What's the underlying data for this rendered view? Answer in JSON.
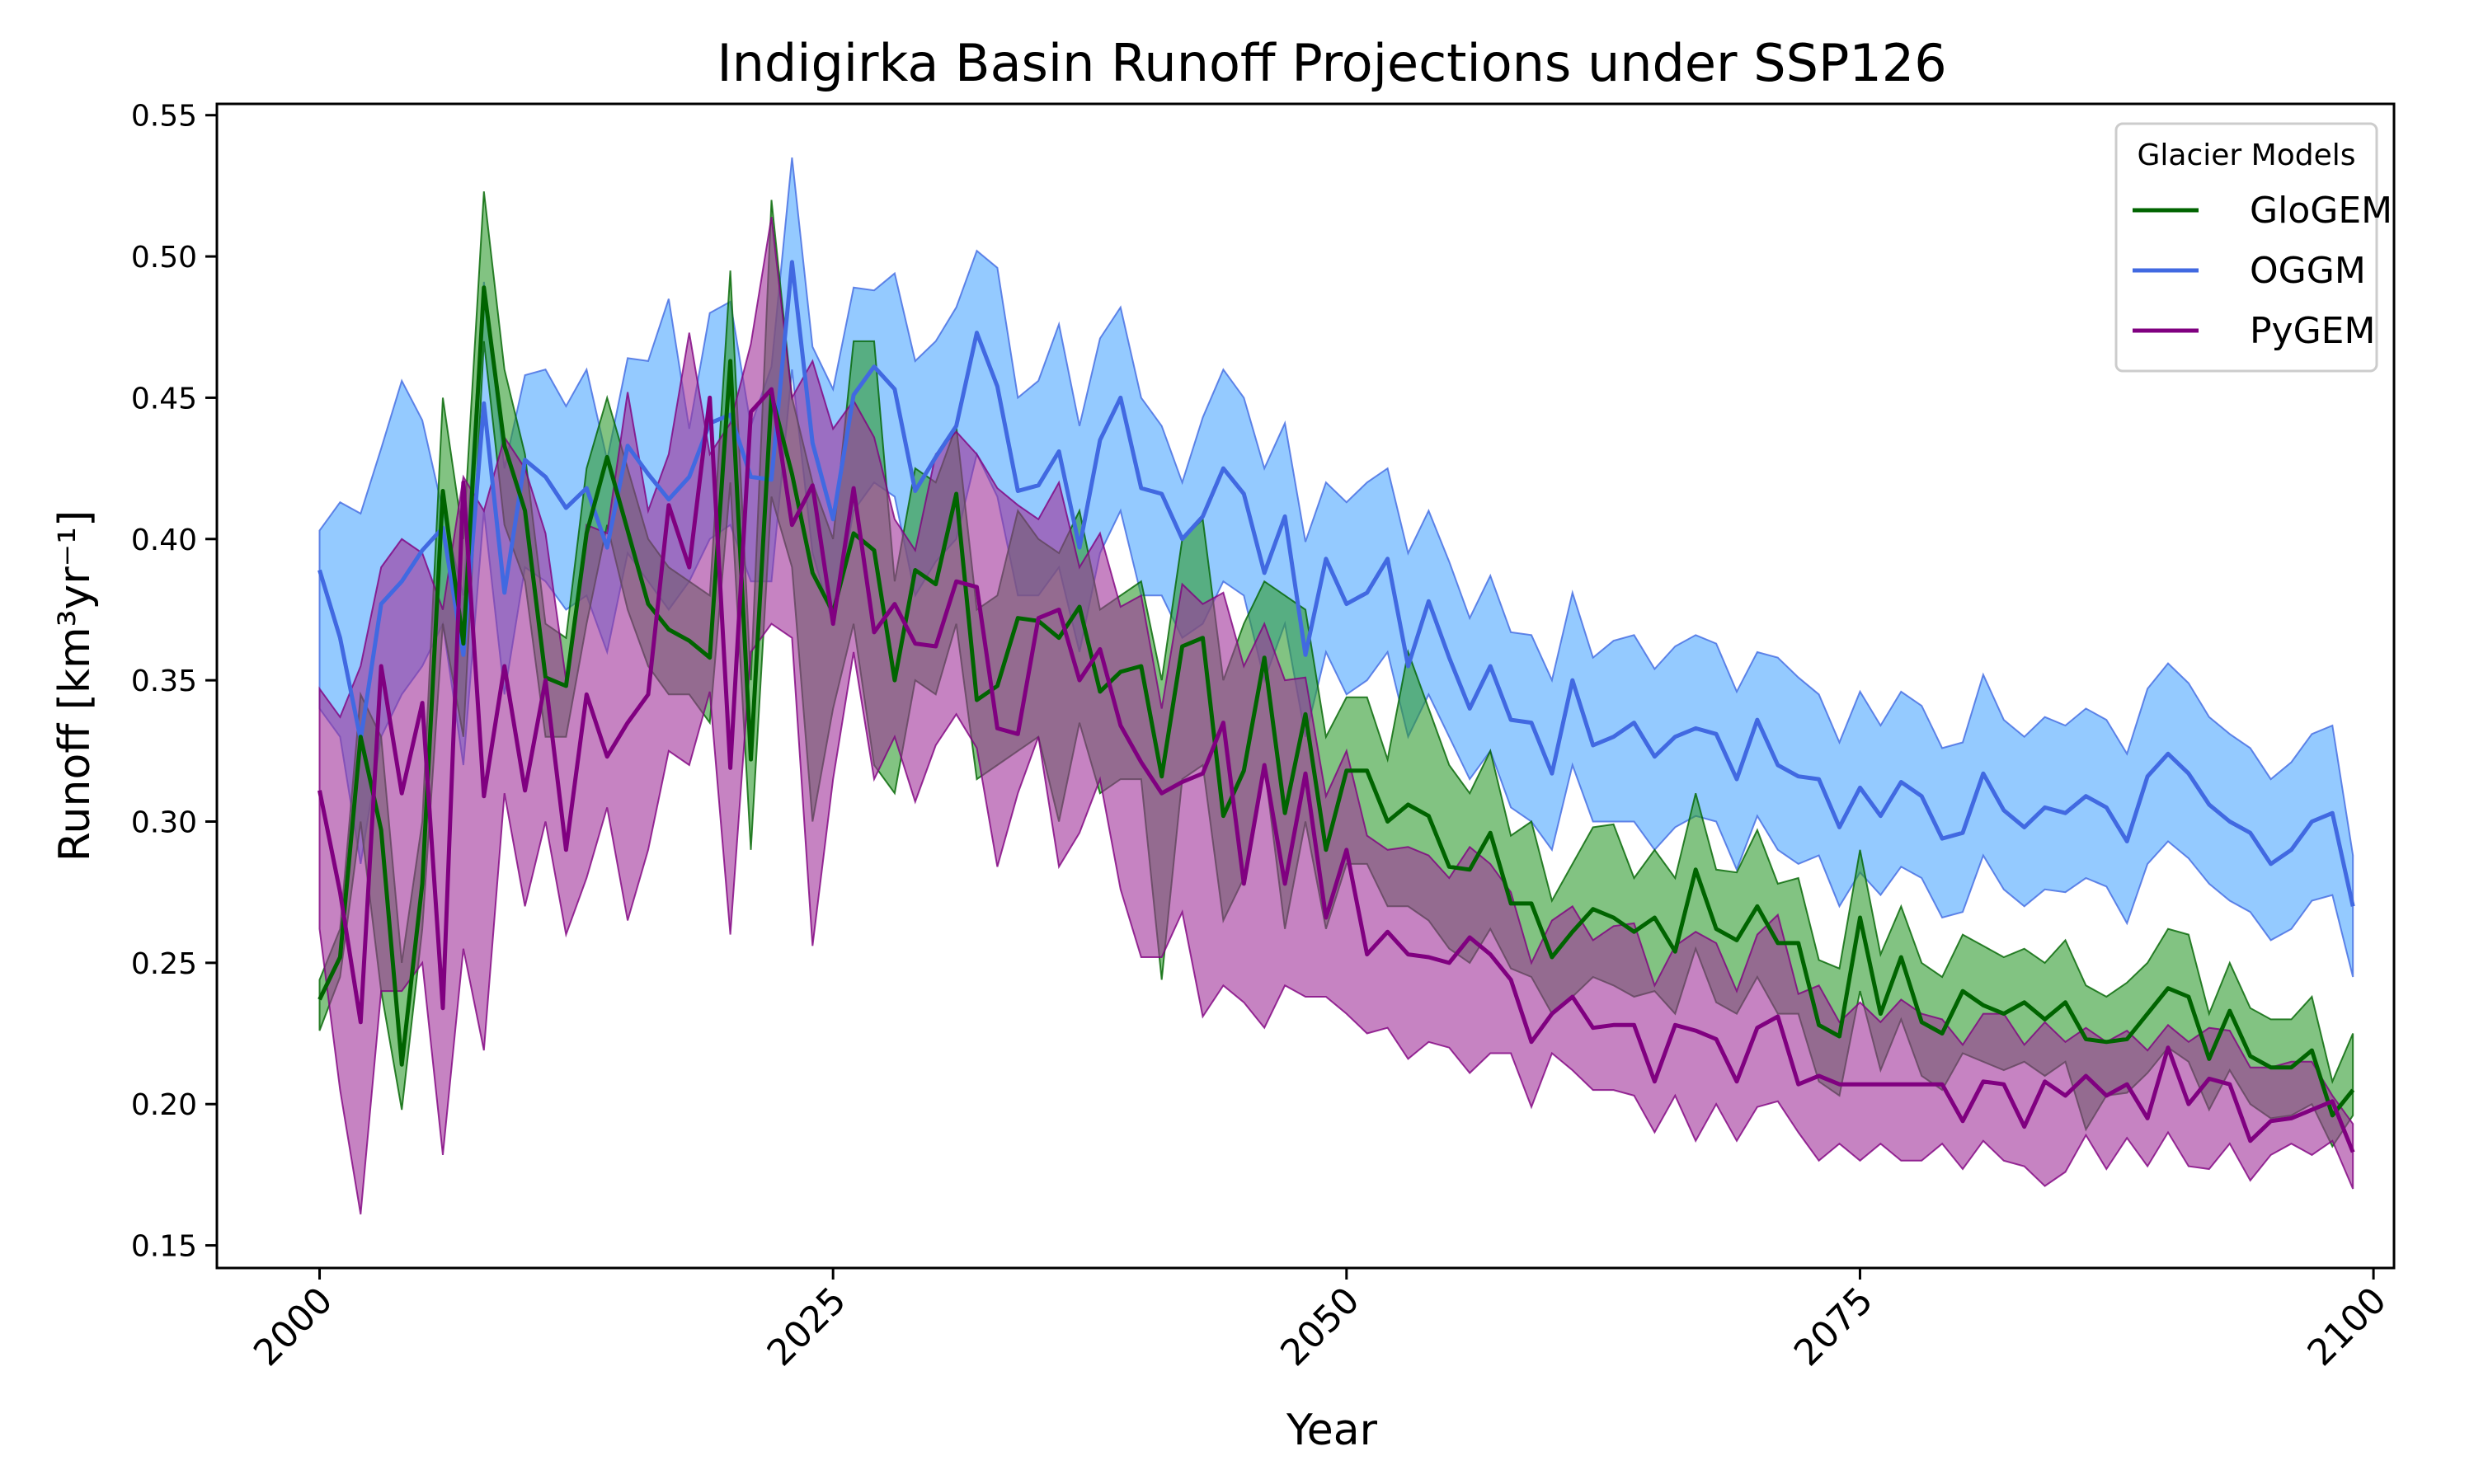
{
  "colors": {
    "GloGEM": "#006400",
    "OGGM": "#4169E1",
    "PyGEM": "#800080",
    "GloGEM_fill": "#2E9B2E",
    "OGGM_fill": "#4DA6FF",
    "PyGEM_fill": "#A0309A"
  },
  "chart_data": {
    "type": "line",
    "title": "Indigirka Basin Runoff Projections under SSP126",
    "xlabel": "Year",
    "ylabel": "Runoff [km³yr⁻¹]",
    "xlim": [
      1995,
      2101
    ],
    "ylim": [
      0.142,
      0.554
    ],
    "xticks": [
      2000,
      2025,
      2050,
      2075,
      2100
    ],
    "yticks": [
      "0.15",
      "0.20",
      "0.25",
      "0.30",
      "0.35",
      "0.40",
      "0.45",
      "0.50",
      "0.55"
    ],
    "grid": false,
    "legend": {
      "title": "Glacier Models",
      "placement": "upper right"
    },
    "x_start": 2000,
    "series": [
      {
        "name": "GloGEM",
        "mean": [
          0.237,
          0.252,
          0.33,
          0.297,
          0.214,
          0.278,
          0.417,
          0.363,
          0.489,
          0.433,
          0.41,
          0.351,
          0.348,
          0.402,
          0.429,
          0.403,
          0.377,
          0.368,
          0.364,
          0.358,
          0.463,
          0.322,
          0.451,
          0.423,
          0.388,
          0.374,
          0.402,
          0.396,
          0.35,
          0.389,
          0.384,
          0.416,
          0.343,
          0.348,
          0.372,
          0.371,
          0.365,
          0.376,
          0.346,
          0.353,
          0.355,
          0.316,
          0.362,
          0.365,
          0.302,
          0.318,
          0.358,
          0.303,
          0.338,
          0.29,
          0.318,
          0.318,
          0.3,
          0.306,
          0.302,
          0.284,
          0.283,
          0.296,
          0.271,
          0.271,
          0.252,
          0.261,
          0.269,
          0.266,
          0.261,
          0.266,
          0.254,
          0.283,
          0.262,
          0.258,
          0.27,
          0.257,
          0.257,
          0.228,
          0.224,
          0.266,
          0.232,
          0.252,
          0.229,
          0.225,
          0.24,
          0.235,
          0.232,
          0.236,
          0.23,
          0.236,
          0.223,
          0.222,
          0.223,
          0.232,
          0.241,
          0.238,
          0.216,
          0.233,
          0.217,
          0.213,
          0.213,
          0.219,
          0.196,
          0.205
        ],
        "lower": [
          0.226,
          0.245,
          0.3,
          0.24,
          0.198,
          0.262,
          0.37,
          0.33,
          0.47,
          0.405,
          0.385,
          0.33,
          0.33,
          0.37,
          0.405,
          0.375,
          0.355,
          0.345,
          0.345,
          0.335,
          0.42,
          0.29,
          0.415,
          0.39,
          0.3,
          0.34,
          0.37,
          0.32,
          0.31,
          0.35,
          0.345,
          0.37,
          0.315,
          0.32,
          0.325,
          0.33,
          0.3,
          0.335,
          0.31,
          0.315,
          0.315,
          0.244,
          0.315,
          0.32,
          0.265,
          0.28,
          0.32,
          0.262,
          0.3,
          0.262,
          0.285,
          0.285,
          0.27,
          0.27,
          0.265,
          0.255,
          0.25,
          0.262,
          0.248,
          0.245,
          0.232,
          0.238,
          0.245,
          0.242,
          0.238,
          0.24,
          0.232,
          0.255,
          0.236,
          0.232,
          0.245,
          0.232,
          0.232,
          0.208,
          0.203,
          0.24,
          0.212,
          0.23,
          0.21,
          0.205,
          0.218,
          0.215,
          0.212,
          0.215,
          0.21,
          0.215,
          0.191,
          0.203,
          0.204,
          0.211,
          0.22,
          0.215,
          0.198,
          0.212,
          0.2,
          0.195,
          0.196,
          0.2,
          0.185,
          0.196
        ],
        "upper": [
          0.244,
          0.262,
          0.345,
          0.33,
          0.25,
          0.3,
          0.45,
          0.4,
          0.523,
          0.46,
          0.43,
          0.37,
          0.365,
          0.425,
          0.45,
          0.425,
          0.4,
          0.39,
          0.385,
          0.38,
          0.495,
          0.35,
          0.52,
          0.45,
          0.42,
          0.4,
          0.47,
          0.47,
          0.385,
          0.425,
          0.42,
          0.44,
          0.375,
          0.38,
          0.41,
          0.4,
          0.395,
          0.41,
          0.375,
          0.38,
          0.385,
          0.35,
          0.4,
          0.407,
          0.35,
          0.37,
          0.385,
          0.38,
          0.375,
          0.33,
          0.344,
          0.344,
          0.322,
          0.36,
          0.34,
          0.32,
          0.31,
          0.325,
          0.295,
          0.3,
          0.272,
          0.285,
          0.298,
          0.299,
          0.28,
          0.29,
          0.28,
          0.31,
          0.283,
          0.282,
          0.297,
          0.278,
          0.28,
          0.251,
          0.248,
          0.29,
          0.253,
          0.27,
          0.25,
          0.245,
          0.26,
          0.256,
          0.252,
          0.255,
          0.25,
          0.258,
          0.242,
          0.238,
          0.243,
          0.25,
          0.262,
          0.26,
          0.232,
          0.25,
          0.234,
          0.23,
          0.23,
          0.238,
          0.208,
          0.225
        ]
      },
      {
        "name": "OGGM",
        "mean": [
          0.389,
          0.365,
          0.329,
          0.377,
          0.385,
          0.396,
          0.404,
          0.359,
          0.448,
          0.381,
          0.428,
          0.422,
          0.411,
          0.418,
          0.397,
          0.433,
          0.423,
          0.414,
          0.422,
          0.441,
          0.444,
          0.422,
          0.421,
          0.498,
          0.434,
          0.407,
          0.451,
          0.461,
          0.453,
          0.417,
          0.429,
          0.44,
          0.473,
          0.454,
          0.417,
          0.419,
          0.431,
          0.397,
          0.435,
          0.45,
          0.418,
          0.416,
          0.4,
          0.408,
          0.425,
          0.416,
          0.388,
          0.408,
          0.359,
          0.393,
          0.377,
          0.381,
          0.393,
          0.355,
          0.378,
          0.358,
          0.34,
          0.355,
          0.336,
          0.335,
          0.317,
          0.35,
          0.327,
          0.33,
          0.335,
          0.323,
          0.33,
          0.333,
          0.331,
          0.315,
          0.336,
          0.32,
          0.316,
          0.315,
          0.298,
          0.312,
          0.302,
          0.314,
          0.309,
          0.294,
          0.296,
          0.317,
          0.304,
          0.298,
          0.305,
          0.303,
          0.309,
          0.305,
          0.293,
          0.316,
          0.324,
          0.317,
          0.306,
          0.3,
          0.296,
          0.285,
          0.29,
          0.3,
          0.303,
          0.27
        ],
        "lower": [
          0.34,
          0.33,
          0.285,
          0.33,
          0.345,
          0.355,
          0.37,
          0.32,
          0.41,
          0.345,
          0.39,
          0.385,
          0.375,
          0.38,
          0.36,
          0.395,
          0.385,
          0.375,
          0.385,
          0.4,
          0.405,
          0.385,
          0.385,
          0.46,
          0.395,
          0.37,
          0.41,
          0.42,
          0.415,
          0.38,
          0.392,
          0.4,
          0.43,
          0.415,
          0.38,
          0.38,
          0.39,
          0.36,
          0.395,
          0.41,
          0.38,
          0.38,
          0.365,
          0.37,
          0.385,
          0.38,
          0.35,
          0.37,
          0.33,
          0.36,
          0.345,
          0.35,
          0.36,
          0.33,
          0.345,
          0.33,
          0.315,
          0.325,
          0.305,
          0.3,
          0.29,
          0.32,
          0.3,
          0.3,
          0.3,
          0.29,
          0.298,
          0.302,
          0.3,
          0.283,
          0.302,
          0.29,
          0.285,
          0.288,
          0.27,
          0.282,
          0.274,
          0.284,
          0.28,
          0.266,
          0.268,
          0.288,
          0.276,
          0.27,
          0.276,
          0.275,
          0.28,
          0.277,
          0.264,
          0.285,
          0.293,
          0.287,
          0.278,
          0.272,
          0.268,
          0.258,
          0.262,
          0.272,
          0.274,
          0.245
        ],
        "upper": [
          0.403,
          0.413,
          0.409,
          0.432,
          0.456,
          0.442,
          0.41,
          0.38,
          0.491,
          0.425,
          0.458,
          0.46,
          0.447,
          0.46,
          0.428,
          0.464,
          0.463,
          0.485,
          0.439,
          0.48,
          0.484,
          0.44,
          0.461,
          0.535,
          0.468,
          0.453,
          0.489,
          0.488,
          0.494,
          0.463,
          0.47,
          0.482,
          0.502,
          0.496,
          0.45,
          0.456,
          0.476,
          0.44,
          0.471,
          0.482,
          0.45,
          0.44,
          0.42,
          0.443,
          0.46,
          0.45,
          0.425,
          0.441,
          0.399,
          0.42,
          0.413,
          0.42,
          0.425,
          0.395,
          0.41,
          0.392,
          0.372,
          0.387,
          0.367,
          0.366,
          0.35,
          0.381,
          0.358,
          0.364,
          0.366,
          0.354,
          0.362,
          0.366,
          0.363,
          0.346,
          0.36,
          0.358,
          0.351,
          0.345,
          0.328,
          0.346,
          0.334,
          0.346,
          0.341,
          0.326,
          0.328,
          0.352,
          0.336,
          0.33,
          0.337,
          0.334,
          0.34,
          0.336,
          0.324,
          0.347,
          0.356,
          0.349,
          0.337,
          0.331,
          0.326,
          0.315,
          0.321,
          0.331,
          0.334,
          0.288
        ]
      },
      {
        "name": "PyGEM",
        "mean": [
          0.311,
          0.275,
          0.229,
          0.355,
          0.31,
          0.342,
          0.234,
          0.42,
          0.309,
          0.355,
          0.311,
          0.35,
          0.29,
          0.345,
          0.323,
          0.335,
          0.345,
          0.412,
          0.39,
          0.45,
          0.319,
          0.445,
          0.453,
          0.405,
          0.419,
          0.37,
          0.418,
          0.367,
          0.377,
          0.363,
          0.362,
          0.385,
          0.383,
          0.333,
          0.331,
          0.372,
          0.375,
          0.35,
          0.361,
          0.334,
          0.321,
          0.31,
          0.314,
          0.317,
          0.335,
          0.278,
          0.32,
          0.278,
          0.317,
          0.266,
          0.29,
          0.253,
          0.261,
          0.253,
          0.252,
          0.25,
          0.259,
          0.253,
          0.244,
          0.222,
          0.232,
          0.238,
          0.227,
          0.228,
          0.228,
          0.208,
          0.228,
          0.226,
          0.223,
          0.208,
          0.227,
          0.231,
          0.207,
          0.21,
          0.207,
          0.207,
          0.207,
          0.207,
          0.207,
          0.207,
          0.194,
          0.208,
          0.207,
          0.192,
          0.208,
          0.203,
          0.21,
          0.203,
          0.207,
          0.195,
          0.22,
          0.2,
          0.209,
          0.207,
          0.187,
          0.194,
          0.195,
          0.198,
          0.201,
          0.183
        ],
        "lower": [
          0.262,
          0.205,
          0.161,
          0.24,
          0.24,
          0.25,
          0.182,
          0.255,
          0.219,
          0.31,
          0.27,
          0.3,
          0.26,
          0.28,
          0.305,
          0.265,
          0.29,
          0.325,
          0.32,
          0.346,
          0.26,
          0.36,
          0.37,
          0.365,
          0.256,
          0.315,
          0.36,
          0.315,
          0.33,
          0.307,
          0.327,
          0.338,
          0.326,
          0.284,
          0.31,
          0.33,
          0.284,
          0.296,
          0.315,
          0.276,
          0.252,
          0.252,
          0.268,
          0.231,
          0.242,
          0.236,
          0.227,
          0.242,
          0.238,
          0.238,
          0.232,
          0.225,
          0.227,
          0.216,
          0.222,
          0.22,
          0.211,
          0.218,
          0.218,
          0.199,
          0.218,
          0.212,
          0.205,
          0.205,
          0.203,
          0.19,
          0.203,
          0.187,
          0.2,
          0.187,
          0.199,
          0.201,
          0.19,
          0.18,
          0.186,
          0.18,
          0.186,
          0.18,
          0.18,
          0.186,
          0.177,
          0.187,
          0.18,
          0.178,
          0.171,
          0.176,
          0.189,
          0.177,
          0.188,
          0.178,
          0.19,
          0.178,
          0.177,
          0.186,
          0.173,
          0.182,
          0.186,
          0.182,
          0.187,
          0.17
        ],
        "upper": [
          0.347,
          0.337,
          0.355,
          0.39,
          0.4,
          0.395,
          0.375,
          0.422,
          0.41,
          0.436,
          0.425,
          0.402,
          0.35,
          0.405,
          0.402,
          0.452,
          0.41,
          0.43,
          0.473,
          0.43,
          0.441,
          0.469,
          0.514,
          0.45,
          0.463,
          0.439,
          0.449,
          0.436,
          0.407,
          0.396,
          0.43,
          0.438,
          0.43,
          0.418,
          0.412,
          0.407,
          0.42,
          0.39,
          0.402,
          0.376,
          0.38,
          0.34,
          0.384,
          0.377,
          0.381,
          0.355,
          0.37,
          0.35,
          0.351,
          0.309,
          0.325,
          0.295,
          0.29,
          0.291,
          0.288,
          0.28,
          0.291,
          0.285,
          0.275,
          0.25,
          0.265,
          0.27,
          0.258,
          0.263,
          0.264,
          0.242,
          0.256,
          0.261,
          0.257,
          0.24,
          0.26,
          0.267,
          0.239,
          0.242,
          0.229,
          0.236,
          0.229,
          0.237,
          0.232,
          0.23,
          0.221,
          0.232,
          0.232,
          0.221,
          0.229,
          0.222,
          0.227,
          0.222,
          0.226,
          0.219,
          0.228,
          0.222,
          0.227,
          0.226,
          0.213,
          0.213,
          0.215,
          0.215,
          0.203,
          0.193
        ]
      }
    ]
  }
}
